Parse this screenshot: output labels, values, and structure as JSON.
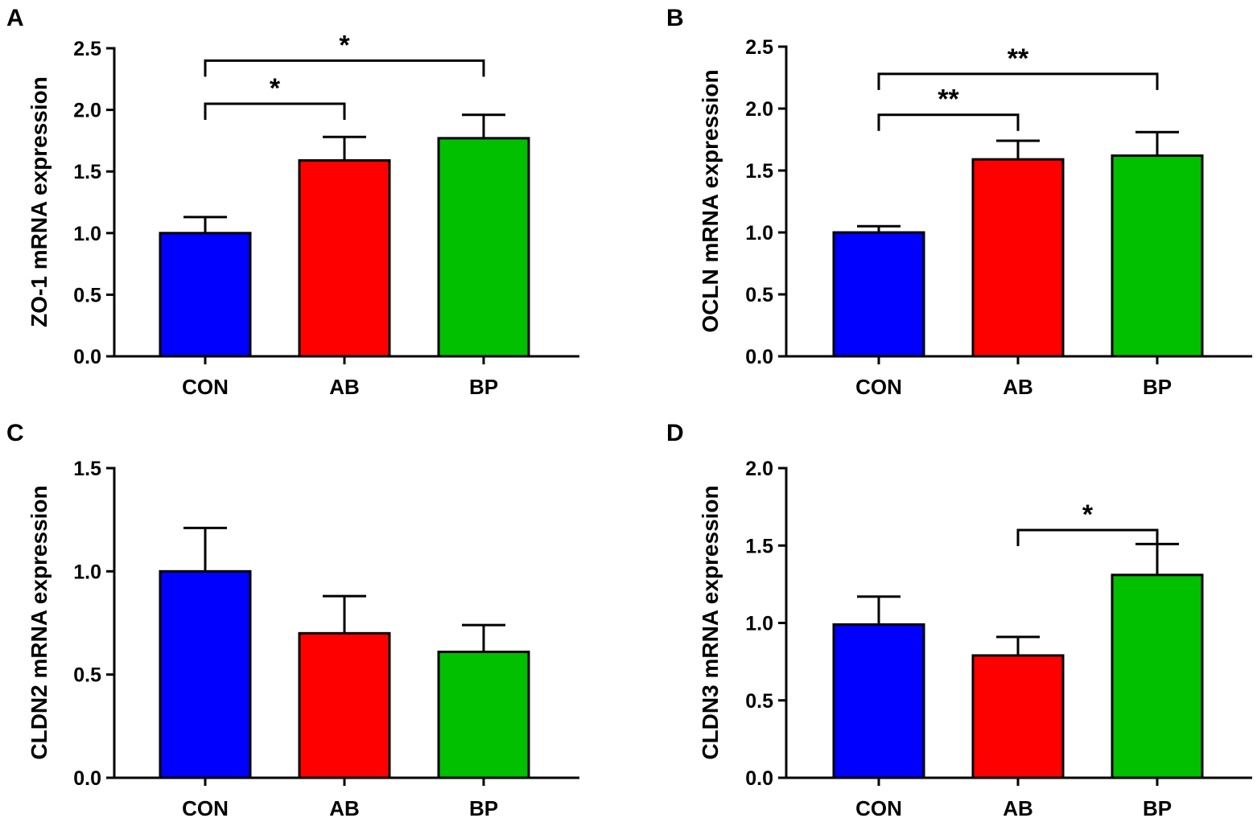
{
  "chart_data": [
    {
      "panel": "A",
      "type": "bar",
      "ylabel": "ZO-1 mRNA expression",
      "xlabel": "",
      "categories": [
        "CON",
        "AB",
        "BP"
      ],
      "values": [
        1.0,
        1.59,
        1.77
      ],
      "errors": [
        0.13,
        0.19,
        0.19
      ],
      "colors": [
        "#0000FF",
        "#FF0000",
        "#00C000"
      ],
      "ylim": [
        0,
        2.5
      ],
      "yticks": [
        "0.0",
        "0.5",
        "1.0",
        "1.5",
        "2.0",
        "2.5"
      ],
      "significance": [
        {
          "from": 0,
          "to": 1,
          "label": "*",
          "level": 2.05
        },
        {
          "from": 0,
          "to": 2,
          "label": "*",
          "level": 2.4
        }
      ]
    },
    {
      "panel": "B",
      "type": "bar",
      "ylabel": "OCLN mRNA expression",
      "xlabel": "",
      "categories": [
        "CON",
        "AB",
        "BP"
      ],
      "values": [
        1.0,
        1.59,
        1.62
      ],
      "errors": [
        0.05,
        0.15,
        0.19
      ],
      "colors": [
        "#0000FF",
        "#FF0000",
        "#00C000"
      ],
      "ylim": [
        0,
        2.5
      ],
      "yticks": [
        "0.0",
        "0.5",
        "1.0",
        "1.5",
        "2.0",
        "2.5"
      ],
      "significance": [
        {
          "from": 0,
          "to": 1,
          "label": "**",
          "level": 1.95
        },
        {
          "from": 0,
          "to": 2,
          "label": "**",
          "level": 2.28
        }
      ]
    },
    {
      "panel": "C",
      "type": "bar",
      "ylabel": "CLDN2 mRNA expression",
      "xlabel": "",
      "categories": [
        "CON",
        "AB",
        "BP"
      ],
      "values": [
        1.0,
        0.7,
        0.61
      ],
      "errors": [
        0.21,
        0.18,
        0.13
      ],
      "colors": [
        "#0000FF",
        "#FF0000",
        "#00C000"
      ],
      "ylim": [
        0,
        1.5
      ],
      "yticks": [
        "0.0",
        "0.5",
        "1.0",
        "1.5"
      ],
      "significance": []
    },
    {
      "panel": "D",
      "type": "bar",
      "ylabel": "CLDN3 mRNA expression",
      "xlabel": "",
      "categories": [
        "CON",
        "AB",
        "BP"
      ],
      "values": [
        0.99,
        0.79,
        1.31
      ],
      "errors": [
        0.18,
        0.12,
        0.2
      ],
      "colors": [
        "#0000FF",
        "#FF0000",
        "#00C000"
      ],
      "ylim": [
        0,
        2.0
      ],
      "yticks": [
        "0.0",
        "0.5",
        "1.0",
        "1.5",
        "2.0"
      ],
      "significance": [
        {
          "from": 1,
          "to": 2,
          "label": "*",
          "level": 1.6
        }
      ]
    }
  ]
}
